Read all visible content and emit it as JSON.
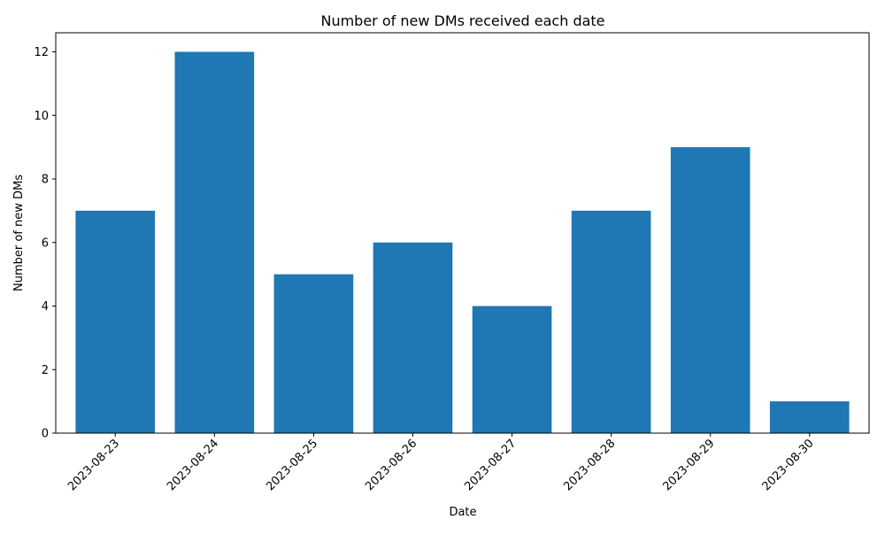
{
  "chart_data": {
    "type": "bar",
    "title": "Number of new DMs received each date",
    "xlabel": "Date",
    "ylabel": "Number of new DMs",
    "categories": [
      "2023-08-23",
      "2023-08-24",
      "2023-08-25",
      "2023-08-26",
      "2023-08-27",
      "2023-08-28",
      "2023-08-29",
      "2023-08-30"
    ],
    "values": [
      7,
      12,
      5,
      6,
      4,
      7,
      9,
      1
    ],
    "ylim": [
      0,
      12.6
    ],
    "yticks": [
      "0",
      "2",
      "4",
      "6",
      "8",
      "10",
      "12"
    ],
    "bar_color": "#1f77b4",
    "grid": false,
    "x_tick_rotation_deg": 45
  }
}
